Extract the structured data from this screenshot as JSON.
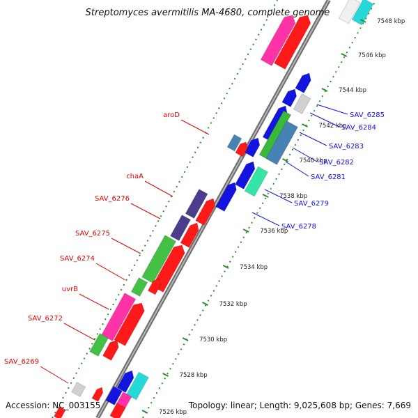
{
  "title": "Streptomyces avermitilis MA-4680, complete genome",
  "accession": "Accession: NC_003155",
  "summary": "Topology: linear; Length: 9,025,608 bp; Genes: 7,669",
  "colors": {
    "backbone": "#8c8c8c",
    "tick": "#2e8b2e",
    "left_label": "#e00000",
    "right_label": "#1010e0"
  },
  "ticks": [
    {
      "label": "7526 kbp"
    },
    {
      "label": "7528 kbp"
    },
    {
      "label": "7530 kbp"
    },
    {
      "label": "7532 kbp"
    },
    {
      "label": "7534 kbp"
    },
    {
      "label": "7536 kbp"
    },
    {
      "label": "7538 kbp"
    },
    {
      "label": "7540 kbp"
    },
    {
      "label": "7542 kbp"
    },
    {
      "label": "7544 kbp"
    },
    {
      "label": "7546 kbp"
    },
    {
      "label": "7548 kbp"
    }
  ],
  "left_labels": [
    "aroD",
    "chaA",
    "SAV_6276",
    "SAV_6275",
    "SAV_6274",
    "uvrB",
    "SAV_6272",
    "SAV_6269"
  ],
  "right_labels": [
    "SAV_6285",
    "SAV_6284",
    "SAV_6283",
    "SAV_6282",
    "SAV_6281",
    "SAV_6279",
    "SAV_6278"
  ]
}
